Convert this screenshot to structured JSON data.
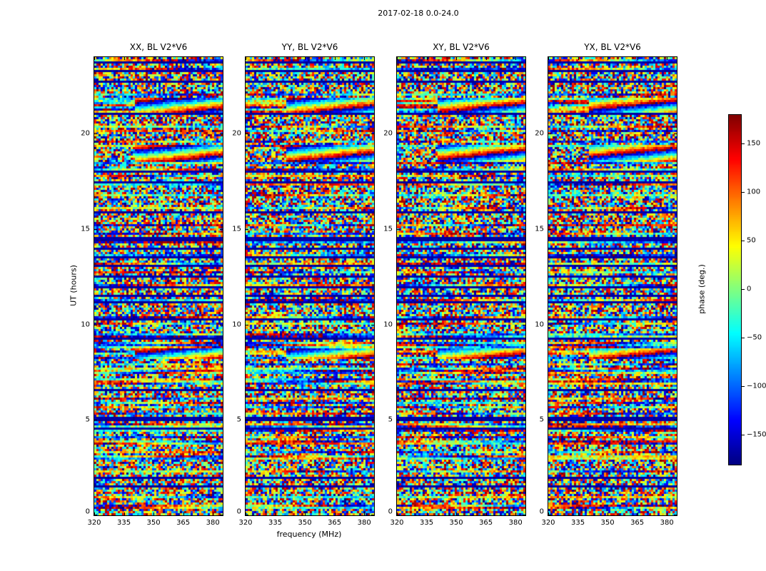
{
  "figure": {
    "background": "#ffffff",
    "text_color": "#000000"
  },
  "chart_data": {
    "type": "heatmap",
    "title": "2017-02-18 0.0-24.0",
    "panels": [
      {
        "title": "XX, BL V2*V6"
      },
      {
        "title": "YY, BL V2*V6"
      },
      {
        "title": "XY, BL V2*V6"
      },
      {
        "title": "YX, BL V2*V6"
      }
    ],
    "xlabel": "frequency (MHz)",
    "ylabel": "UT (hours)",
    "x_range": [
      320,
      385
    ],
    "x_ticks": [
      320,
      335,
      350,
      365,
      380
    ],
    "y_range": [
      0,
      24
    ],
    "y_ticks": [
      0,
      5,
      10,
      15,
      20
    ],
    "colorbar": {
      "label": "phase (deg.)",
      "range": [
        -180,
        180
      ],
      "ticks": [
        -150,
        -100,
        -50,
        0,
        50,
        100,
        150
      ],
      "colormap": "jet"
    },
    "content": "Interferometric visibility phase versus time (UT hours, 0-24) and frequency (320-385 MHz) for four polarization products of baseline V2*V6; field is noise-like phase with horizontal flagged (dark) rows and coherent fringe patches near 19h and 21.5h",
    "flagged_rows_hours": [
      [
        23.75,
        1
      ],
      [
        23.35,
        1
      ],
      [
        22.8,
        1
      ],
      [
        21.05,
        1
      ],
      [
        18.05,
        1
      ],
      [
        17.5,
        1
      ],
      [
        15.9,
        1
      ],
      [
        14.55,
        2
      ],
      [
        14.0,
        1
      ],
      [
        13.6,
        1
      ],
      [
        13.15,
        1
      ],
      [
        12.6,
        1
      ],
      [
        12.05,
        1
      ],
      [
        11.6,
        1
      ],
      [
        11.2,
        1
      ],
      [
        10.35,
        1
      ],
      [
        9.3,
        1
      ],
      [
        6.6,
        1
      ],
      [
        5.15,
        2
      ],
      [
        4.6,
        1
      ],
      [
        2.05,
        1
      ],
      [
        1.55,
        1
      ]
    ],
    "fringe_bands_hours": [
      [
        18.6,
        19.4
      ],
      [
        21.2,
        21.9
      ],
      [
        8.3,
        8.8
      ]
    ]
  }
}
